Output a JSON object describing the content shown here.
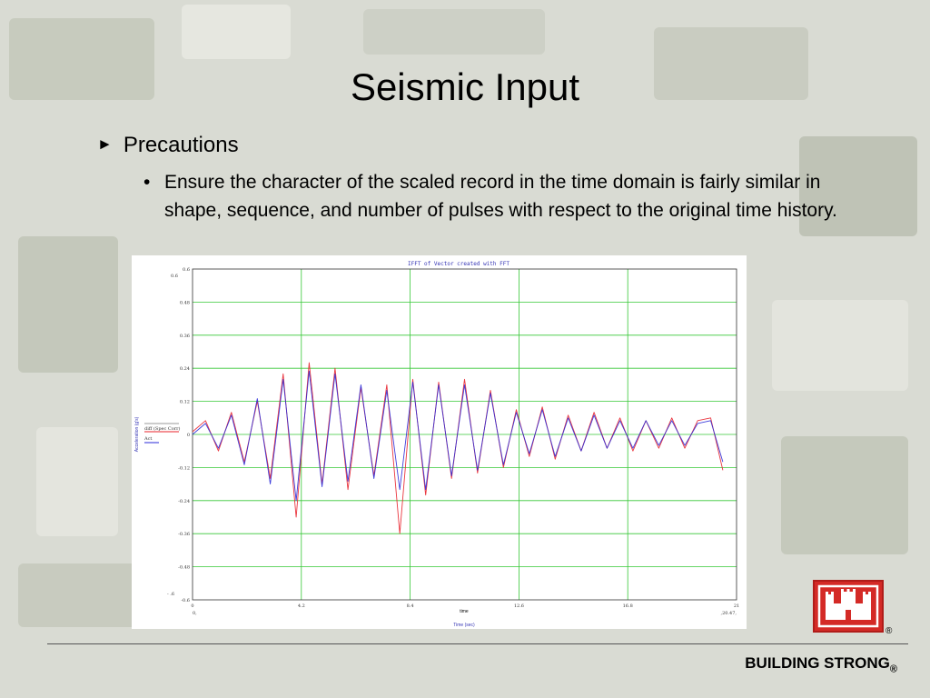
{
  "slide": {
    "title": "Seismic Input",
    "bullet_level1": "Precautions",
    "bullet_level2": "Ensure the character of the scaled record in the time domain is fairly similar in shape, sequence, and number of pulses with respect to the original time history.",
    "footer": "BUILDING STRONG",
    "footer_mark": "®",
    "logo_mark": "®"
  },
  "colors": {
    "series1": "#e8202a",
    "series2": "#2a2ad8",
    "grid": "#37c837",
    "axis_text": "#3535b5"
  },
  "chart_data": {
    "type": "line",
    "title": "IFFT of Vector created with FFT",
    "xlabel": "Time (sec)",
    "xlabel_inner": "time",
    "ylabel": "Acceleration (g's)",
    "xlim": [
      0,
      21
    ],
    "ylim": [
      -0.6,
      0.6
    ],
    "x_ticks": [
      "0",
      "4.2",
      "8.4",
      "12.6",
      "16.8",
      "21"
    ],
    "y_ticks": [
      "0.6",
      "0.48",
      "0.36",
      "0.24",
      "0.12",
      "0",
      "-0.12",
      "-0.24",
      "-0.36",
      "-0.48",
      "-0.6"
    ],
    "x_start_label": "0,",
    "x_end_label": ",20.47,",
    "y_top_side_label": "0.6",
    "y_bottom_side_label": "- .6",
    "grid": true,
    "legend": {
      "placement": "left",
      "entries": [
        "diff (Spec Corr)",
        "Act"
      ]
    },
    "series": [
      {
        "name": "diff (Spec Corr)",
        "x": [
          0,
          0.5,
          1,
          1.5,
          2,
          2.5,
          3,
          3.5,
          4,
          4.5,
          5,
          5.5,
          6,
          6.5,
          7,
          7.5,
          8,
          8.5,
          9,
          9.5,
          10,
          10.5,
          11,
          11.5,
          12,
          12.5,
          13,
          13.5,
          14,
          14.5,
          15,
          15.5,
          16,
          16.5,
          17,
          17.5,
          18,
          18.5,
          19,
          19.5,
          20,
          20.47
        ],
        "values": [
          0.01,
          0.05,
          -0.06,
          0.08,
          -0.1,
          0.12,
          -0.16,
          0.22,
          -0.3,
          0.26,
          -0.18,
          0.24,
          -0.2,
          0.17,
          -0.15,
          0.18,
          -0.36,
          0.2,
          -0.22,
          0.19,
          -0.16,
          0.2,
          -0.14,
          0.16,
          -0.12,
          0.09,
          -0.08,
          0.1,
          -0.09,
          0.07,
          -0.06,
          0.08,
          -0.05,
          0.06,
          -0.06,
          0.05,
          -0.05,
          0.06,
          -0.05,
          0.05,
          0.06,
          -0.13
        ]
      },
      {
        "name": "Act",
        "x": [
          0,
          0.5,
          1,
          1.5,
          2,
          2.5,
          3,
          3.5,
          4,
          4.5,
          5,
          5.5,
          6,
          6.5,
          7,
          7.5,
          8,
          8.5,
          9,
          9.5,
          10,
          10.5,
          11,
          11.5,
          12,
          12.5,
          13,
          13.5,
          14,
          14.5,
          15,
          15.5,
          16,
          16.5,
          17,
          17.5,
          18,
          18.5,
          19,
          19.5,
          20,
          20.47
        ],
        "values": [
          0,
          0.04,
          -0.05,
          0.07,
          -0.11,
          0.13,
          -0.18,
          0.2,
          -0.24,
          0.23,
          -0.19,
          0.22,
          -0.17,
          0.18,
          -0.16,
          0.16,
          -0.2,
          0.19,
          -0.2,
          0.18,
          -0.15,
          0.18,
          -0.13,
          0.15,
          -0.11,
          0.08,
          -0.07,
          0.09,
          -0.08,
          0.06,
          -0.06,
          0.07,
          -0.05,
          0.05,
          -0.05,
          0.05,
          -0.04,
          0.05,
          -0.04,
          0.04,
          0.05,
          -0.1
        ]
      }
    ]
  }
}
